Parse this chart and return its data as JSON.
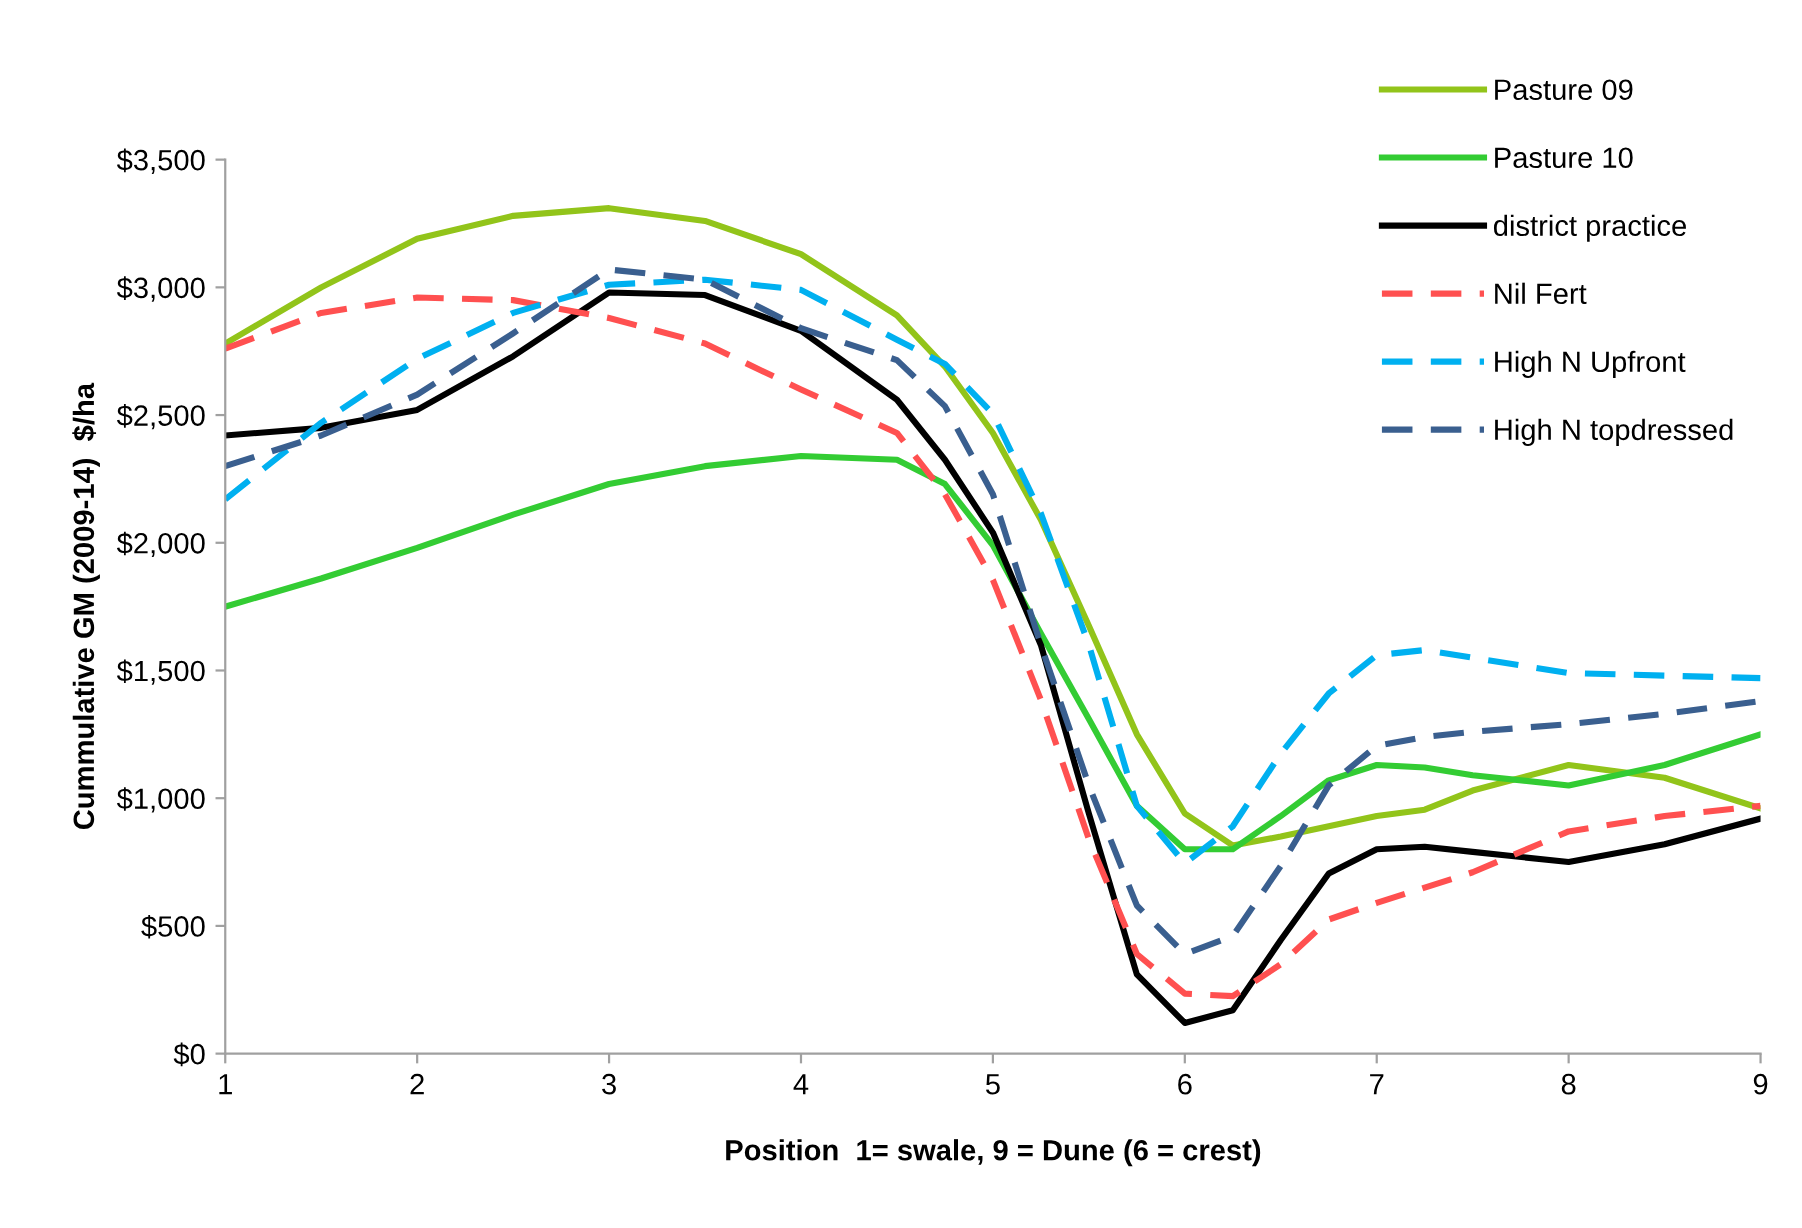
{
  "chart_data": {
    "type": "line",
    "xlabel": "Position  1= swale, 9 = Dune (6 = crest)",
    "ylabel": "Cummulative GM (2009-14)  $/ha",
    "x": [
      1,
      1.5,
      2,
      2.5,
      3,
      3.5,
      4,
      4.5,
      4.75,
      5,
      5.25,
      5.5,
      5.75,
      6,
      6.25,
      6.5,
      6.75,
      7,
      7.25,
      7.5,
      8,
      8.5,
      9
    ],
    "series": [
      {
        "name": "Pasture 09",
        "color": "#92c41a",
        "line_style": "solid",
        "values": [
          2780,
          3000,
          3190,
          3280,
          3310,
          3260,
          3130,
          2890,
          2690,
          2430,
          2090,
          1675,
          1250,
          940,
          815,
          850,
          890,
          930,
          955,
          1030,
          1130,
          1080,
          960
        ]
      },
      {
        "name": "Pasture 10",
        "color": "#33cc33",
        "line_style": "solid",
        "values": [
          1750,
          1860,
          1980,
          2110,
          2230,
          2300,
          2340,
          2325,
          2230,
          1990,
          1645,
          1310,
          970,
          800,
          800,
          930,
          1070,
          1130,
          1120,
          1090,
          1050,
          1130,
          1250
        ]
      },
      {
        "name": "district practice",
        "color": "#000000",
        "line_style": "solid",
        "values": [
          2420,
          2450,
          2520,
          2730,
          2980,
          2970,
          2830,
          2560,
          2325,
          2040,
          1600,
          940,
          310,
          120,
          170,
          445,
          705,
          800,
          810,
          790,
          750,
          820,
          920
        ]
      },
      {
        "name": "Nil Fert",
        "color": "#ff5050",
        "line_style": "dashed",
        "values": [
          2760,
          2900,
          2960,
          2950,
          2880,
          2780,
          2600,
          2430,
          2190,
          1855,
          1385,
          840,
          390,
          235,
          225,
          350,
          525,
          590,
          650,
          710,
          870,
          930,
          970
        ]
      },
      {
        "name": "High N Upfront",
        "color": "#00b0f0",
        "line_style": "dashed",
        "values": [
          2170,
          2470,
          2720,
          2900,
          3010,
          3030,
          2990,
          2795,
          2700,
          2505,
          2115,
          1600,
          970,
          745,
          890,
          1175,
          1410,
          1560,
          1580,
          1550,
          1490,
          1480,
          1470
        ]
      },
      {
        "name": "High N topdressed",
        "color": "#3a5f8f",
        "line_style": "dashed",
        "values": [
          2300,
          2420,
          2580,
          2820,
          3070,
          3030,
          2840,
          2715,
          2535,
          2190,
          1600,
          1050,
          580,
          390,
          460,
          735,
          1050,
          1205,
          1240,
          1260,
          1290,
          1330,
          1380
        ]
      }
    ],
    "xlim": [
      1,
      9
    ],
    "xticks": [
      1,
      2,
      3,
      4,
      5,
      6,
      7,
      8,
      9
    ],
    "ylim": [
      0,
      3500
    ],
    "yticks": [
      {
        "value": 0,
        "label": "$0"
      },
      {
        "value": 500,
        "label": "$500"
      },
      {
        "value": 1000,
        "label": "$1,000"
      },
      {
        "value": 1500,
        "label": "$1,500"
      },
      {
        "value": 2000,
        "label": "$2,000"
      },
      {
        "value": 2500,
        "label": "$2,500"
      },
      {
        "value": 3000,
        "label": "$3,000"
      },
      {
        "value": 3500,
        "label": "$3,500"
      }
    ],
    "grid": false,
    "legend": "top right",
    "marker": "none"
  }
}
